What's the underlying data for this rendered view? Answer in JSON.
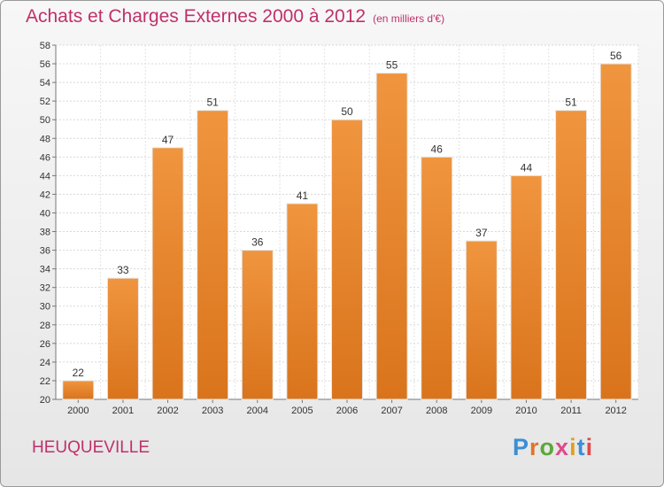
{
  "chart_data": {
    "type": "bar",
    "title": "Achats et Charges Externes 2000 à 2012",
    "subtitle": "(en milliers d'€)",
    "categories": [
      "2000",
      "2001",
      "2002",
      "2003",
      "2004",
      "2005",
      "2006",
      "2007",
      "2008",
      "2009",
      "2010",
      "2011",
      "2012"
    ],
    "values": [
      22,
      33,
      47,
      51,
      36,
      41,
      50,
      55,
      46,
      37,
      44,
      51,
      56
    ],
    "ylim": [
      20,
      58
    ],
    "yticks": [
      20,
      22,
      24,
      26,
      28,
      30,
      32,
      34,
      36,
      38,
      40,
      42,
      44,
      46,
      48,
      50,
      52,
      54,
      56,
      58
    ],
    "grid": true,
    "bar_color": "#f0953f",
    "bar_color_dark": "#d9741c"
  },
  "commune": "HEUQUEVILLE",
  "logo": {
    "letters": [
      "P",
      "r",
      "o",
      "x",
      "i",
      "t",
      "i"
    ],
    "colors": [
      "#3a8fd6",
      "#e0742a",
      "#5aa83a",
      "#e04a8a",
      "#e0a020",
      "#3a8fd6",
      "#e04a4a"
    ]
  }
}
